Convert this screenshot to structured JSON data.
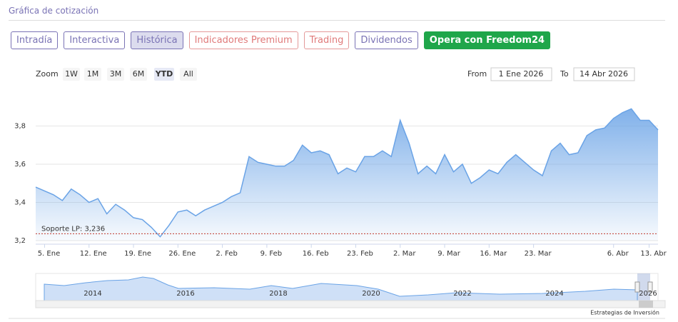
{
  "header": {
    "title": "Gráfica de cotización"
  },
  "tabs": [
    "Intradía",
    "Interactiva",
    "Histórica",
    "Indicadores Premium",
    "Trading",
    "Dividendos",
    "Opera con Freedom24"
  ],
  "zoom": {
    "label": "Zoom",
    "buttons": [
      "1W",
      "1M",
      "3M",
      "6M",
      "YTD",
      "All"
    ]
  },
  "range": {
    "from_label": "From",
    "from": "1 Ene 2026",
    "to_label": "To",
    "to": "14 Abr 2026"
  },
  "chart_data": {
    "type": "area",
    "color": "#6aa3e6",
    "categories": [
      null,
      "5. Ene",
      null,
      null,
      null,
      null,
      "12. Ene",
      null,
      null,
      null,
      null,
      "19. Ene",
      null,
      null,
      null,
      null,
      "26. Ene",
      null,
      null,
      null,
      null,
      "2. Feb",
      null,
      null,
      null,
      null,
      "9. Feb",
      null,
      null,
      null,
      null,
      "16. Feb",
      null,
      null,
      null,
      null,
      "23. Feb",
      null,
      null,
      null,
      null,
      "2. Mar",
      null,
      null,
      null,
      null,
      "9. Mar",
      null,
      null,
      null,
      null,
      "16. Mar",
      null,
      null,
      null,
      null,
      "23. Mar",
      null,
      null,
      null,
      null,
      null,
      null,
      null,
      null,
      "6. Abr",
      null,
      null,
      null,
      "13. Abr",
      null
    ],
    "values": [
      3.48,
      3.46,
      3.44,
      3.41,
      3.47,
      3.44,
      3.4,
      3.42,
      3.34,
      3.39,
      3.36,
      3.32,
      3.31,
      3.27,
      3.22,
      3.28,
      3.35,
      3.36,
      3.33,
      3.36,
      3.38,
      3.4,
      3.43,
      3.45,
      3.64,
      3.61,
      3.6,
      3.59,
      3.59,
      3.62,
      3.7,
      3.66,
      3.67,
      3.65,
      3.55,
      3.58,
      3.56,
      3.64,
      3.64,
      3.67,
      3.64,
      3.83,
      3.71,
      3.55,
      3.59,
      3.55,
      3.65,
      3.56,
      3.6,
      3.5,
      3.53,
      3.57,
      3.55,
      3.61,
      3.65,
      3.61,
      3.57,
      3.54,
      3.67,
      3.71,
      3.65,
      3.66,
      3.75,
      3.78,
      3.79,
      3.84,
      3.87,
      3.89,
      3.83,
      3.83,
      3.78
    ],
    "ylim": [
      3.2,
      4.0
    ],
    "yticks": [
      {
        "value": 3.2,
        "label": "3,2"
      },
      {
        "value": 3.4,
        "label": "3,4"
      },
      {
        "value": 3.6,
        "label": "3,6"
      },
      {
        "value": 3.8,
        "label": "3,8"
      }
    ],
    "grid": true,
    "support": {
      "label": "Soporte LP: 3,236",
      "value": 3.236,
      "color": "#c0392b"
    },
    "navigator": {
      "labels": [
        "2014",
        "2016",
        "2018",
        "2020",
        "2022",
        "2024",
        "2026"
      ]
    }
  },
  "credits": "Estrategias de Inversión"
}
